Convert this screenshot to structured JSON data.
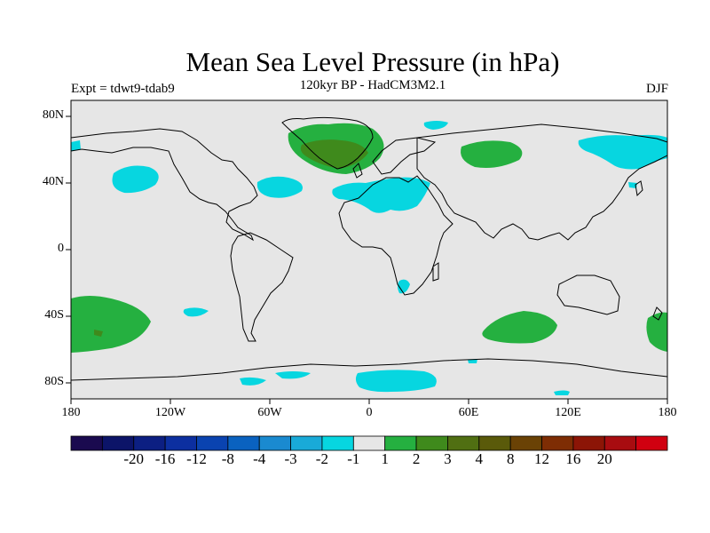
{
  "title": "Mean Sea Level Pressure (in hPa)",
  "subtitle": "120kyr BP - HadCM3M2.1",
  "left_label": "Expt = tdwt9-tdab9",
  "right_label": "DJF",
  "y_axis": [
    "80N",
    "40N",
    "0",
    "40S",
    "80S"
  ],
  "x_axis": [
    "180",
    "120W",
    "60W",
    "0",
    "60E",
    "120E",
    "180"
  ],
  "colorbar": {
    "colors": [
      "#1a0a4f",
      "#0c1468",
      "#0c1f82",
      "#0c2fa0",
      "#0a43b0",
      "#0a62c0",
      "#1a8ad0",
      "#19aad8",
      "#07d6e0",
      "#e6e6e6",
      "#25b040",
      "#3f8a1c",
      "#506f12",
      "#5a5a0a",
      "#6a4205",
      "#7e2d04",
      "#8c1506",
      "#a80c10",
      "#d00010"
    ],
    "labels": [
      "-20",
      "-16",
      "-12",
      "-8",
      "-4",
      "-3",
      "-2",
      "-1",
      "1",
      "2",
      "3",
      "4",
      "8",
      "12",
      "16",
      "20"
    ]
  },
  "palette": {
    "land_bg": "#e6e6e6",
    "cyan": "#07d6e0",
    "green": "#25b040",
    "dark_green": "#3f8a1c",
    "olive": "#5a5a0a"
  }
}
